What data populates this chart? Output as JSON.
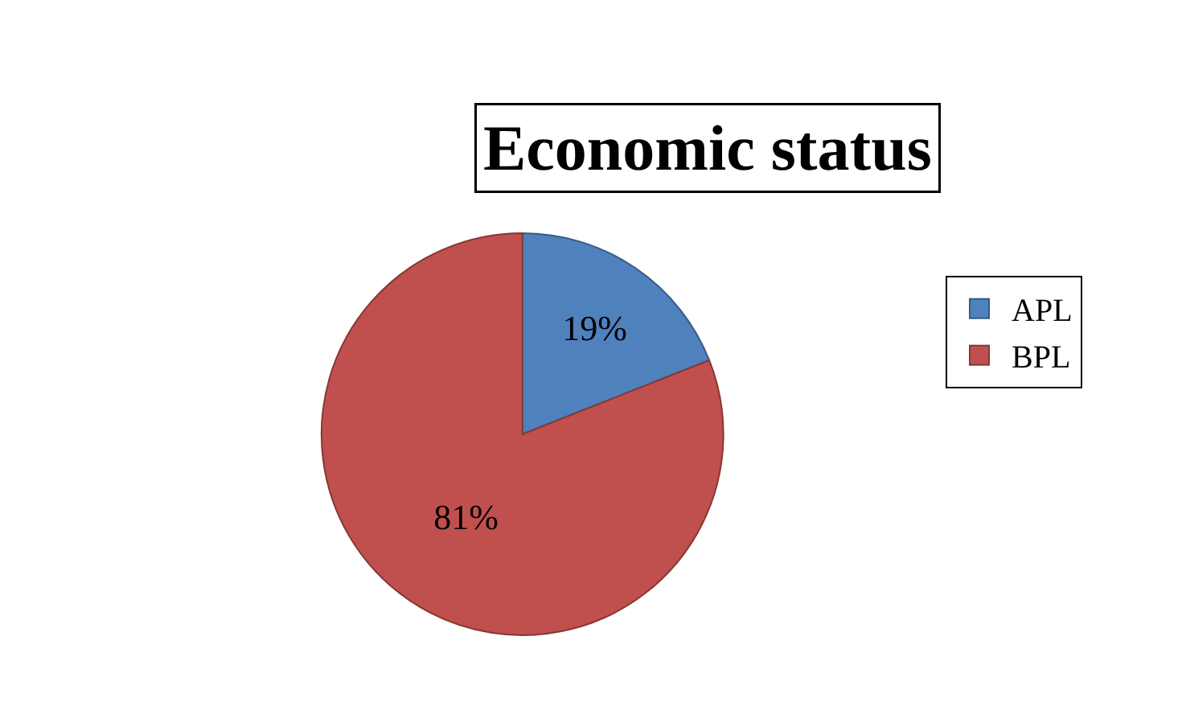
{
  "chart_data": {
    "type": "pie",
    "title": "Economic status",
    "categories": [
      "APL",
      "BPL"
    ],
    "values": [
      19,
      81
    ],
    "colors": [
      "#4f81bd",
      "#c0504d"
    ],
    "value_labels": [
      "19%",
      "81%"
    ],
    "legend": "right"
  }
}
